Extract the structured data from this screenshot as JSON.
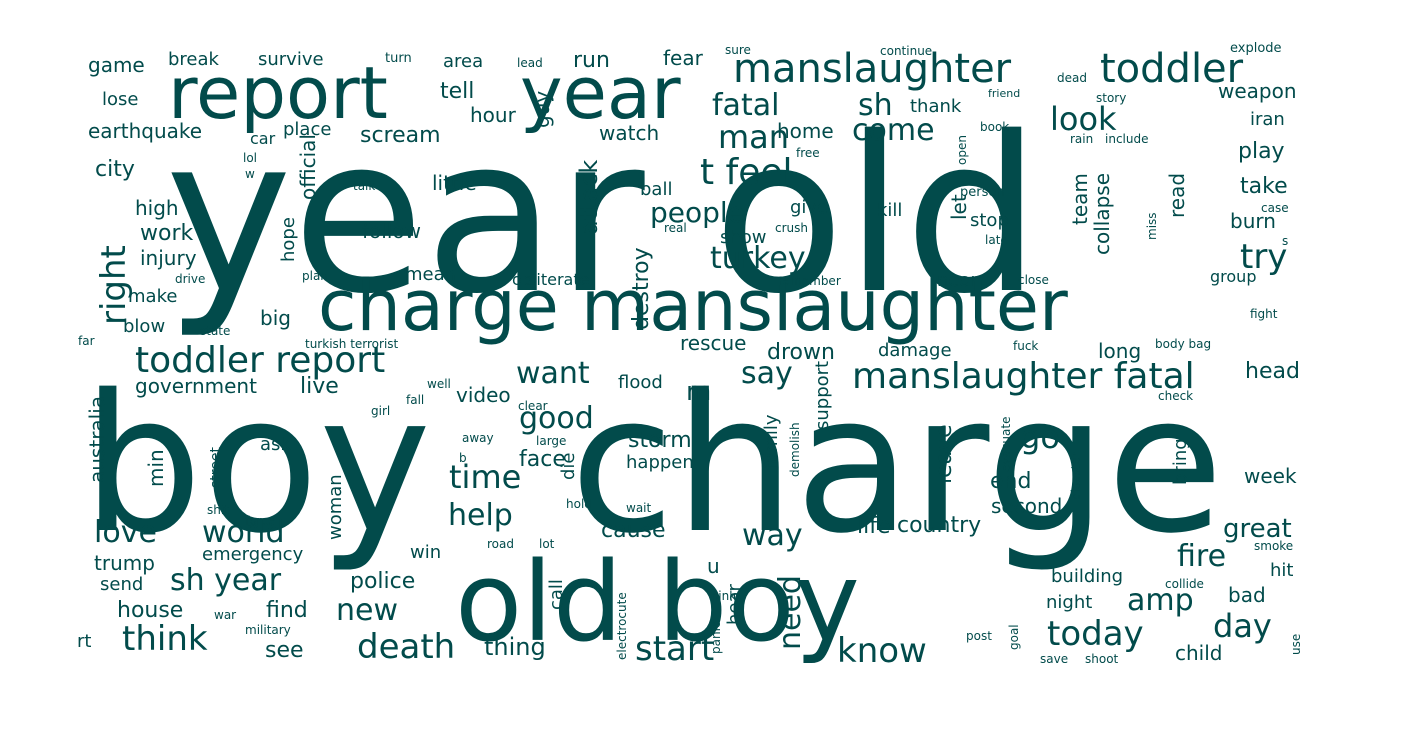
{
  "word_cloud": {
    "color": "#024b4b",
    "background": "#ffffff",
    "words": [
      "year old",
      "boy",
      "charge",
      "old boy",
      "charge manslaughter",
      "report",
      "year",
      "manslaughter",
      "toddler",
      "toddler report",
      "manslaughter fatal",
      "fatal",
      "sh",
      "look",
      "come",
      "man",
      "t feel",
      "people",
      "turkey",
      "try",
      "right",
      "earthquake",
      "city",
      "game",
      "break",
      "survive",
      "turn",
      "lead",
      "area",
      "tell",
      "run",
      "fear",
      "sure",
      "continue",
      "explode",
      "dead",
      "friend",
      "weapon",
      "hour",
      "guy",
      "scream",
      "place",
      "car",
      "lol",
      "official",
      "little",
      "watch",
      "home",
      "thank",
      "story",
      "iran",
      "lose",
      "high",
      "work",
      "injury",
      "make",
      "blow",
      "big",
      "hope",
      "follow",
      "attack",
      "ball",
      "free",
      "kill",
      "let",
      "team",
      "collapse",
      "read",
      "play",
      "take",
      "burn",
      "w",
      "talk",
      "plan",
      "drive",
      "mean",
      "obliterate",
      "destroy",
      "real",
      "crush",
      "show",
      "give",
      "stop",
      "late",
      "remember",
      "near",
      "close",
      "group",
      "person",
      "open",
      "book",
      "rain",
      "include",
      "case",
      "s",
      "miss",
      "fight",
      "state",
      "far",
      "turkish terrorist",
      "government",
      "live",
      "want",
      "say",
      "rescue",
      "drown",
      "damage",
      "fuck",
      "long",
      "body bag",
      "head",
      "m",
      "good",
      "video",
      "flood",
      "support",
      "australia",
      "min",
      "street",
      "ask",
      "girl",
      "fall",
      "well",
      "clear",
      "away",
      "large",
      "storm",
      "die",
      "face",
      "time",
      "happen",
      "family",
      "demolish",
      "leave",
      "go",
      "disaster",
      "evacuate",
      "check",
      "bring",
      "end",
      "week",
      "woman",
      "b",
      "hold",
      "shit",
      "force",
      "help",
      "wait",
      "second",
      "love",
      "world",
      "cause",
      "way",
      "life",
      "country",
      "great",
      "emergency",
      "trump",
      "send",
      "sh year",
      "win",
      "road",
      "lot",
      "call",
      "electrocute",
      "u",
      "hear",
      "need",
      "panic",
      "sink",
      "fire",
      "building",
      "collide",
      "smoke",
      "hit",
      "bad",
      "house",
      "war",
      "find",
      "new",
      "police",
      "amp",
      "night",
      "post",
      "goal",
      "military",
      "rt",
      "think",
      "see",
      "death",
      "thing",
      "start",
      "know",
      "today",
      "day",
      "use",
      "save",
      "shoot",
      "child"
    ]
  }
}
